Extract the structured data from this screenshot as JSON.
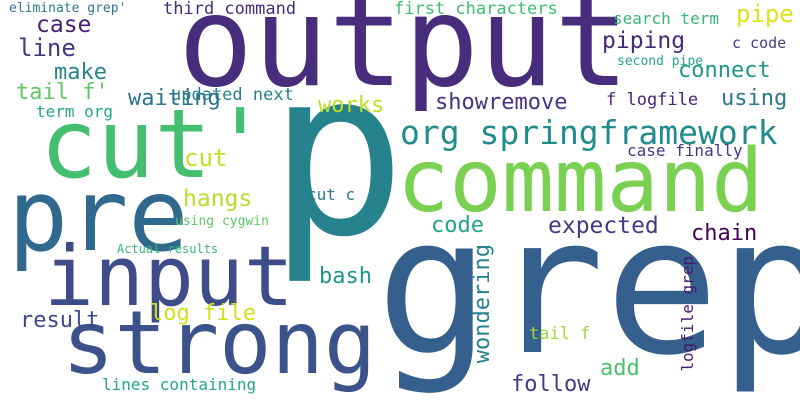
{
  "words": [
    {
      "id": "p",
      "text": "p",
      "color": "#26838e"
    },
    {
      "id": "grep",
      "text": "grep",
      "color": "#355f8d"
    },
    {
      "id": "output",
      "text": "output",
      "color": "#472d7b"
    },
    {
      "id": "command",
      "text": "command",
      "color": "#7ad151"
    },
    {
      "id": "cut_quote",
      "text": "cut'",
      "color": "#44bf70"
    },
    {
      "id": "pre",
      "text": "pre",
      "color": "#31688e"
    },
    {
      "id": "input",
      "text": "input",
      "color": "#3e4c8a"
    },
    {
      "id": "strong",
      "text": "strong",
      "color": "#3b528b"
    },
    {
      "id": "org_springframework",
      "text": "org springframework",
      "color": "#228c8d"
    },
    {
      "id": "pipe",
      "text": "pipe",
      "color": "#dde318"
    },
    {
      "id": "piping",
      "text": "piping",
      "color": "#482878"
    },
    {
      "id": "connect",
      "text": "connect",
      "color": "#1f988b"
    },
    {
      "id": "eliminate_grep",
      "text": "eliminate grep'",
      "color": "#2a788e"
    },
    {
      "id": "third_command",
      "text": "third command",
      "color": "#472c7a"
    },
    {
      "id": "first_characters",
      "text": "first characters",
      "color": "#3fbc73"
    },
    {
      "id": "search_term",
      "text": "search term",
      "color": "#35b779"
    },
    {
      "id": "c_code",
      "text": "c code",
      "color": "#443983"
    },
    {
      "id": "second_pipe",
      "text": "second pipe",
      "color": "#22a884"
    },
    {
      "id": "case_top",
      "text": "case",
      "color": "#481f70"
    },
    {
      "id": "line",
      "text": "line",
      "color": "#453781"
    },
    {
      "id": "make",
      "text": "make",
      "color": "#25858e"
    },
    {
      "id": "tail_f_quote",
      "text": "tail f'",
      "color": "#5ec962"
    },
    {
      "id": "term_org",
      "text": "term org",
      "color": "#22a884"
    },
    {
      "id": "waiting",
      "text": "waiting",
      "color": "#2c728e"
    },
    {
      "id": "updated_next",
      "text": "updated next",
      "color": "#277f8e"
    },
    {
      "id": "works",
      "text": "works",
      "color": "#bddf26"
    },
    {
      "id": "showremove",
      "text": "showremove",
      "color": "#46327e"
    },
    {
      "id": "f_logfile",
      "text": "f logfile",
      "color": "#482475"
    },
    {
      "id": "using_top",
      "text": "using",
      "color": "#2a788e"
    },
    {
      "id": "case_finally",
      "text": "case finally",
      "color": "#453882"
    },
    {
      "id": "cut",
      "text": "cut",
      "color": "#c2df23"
    },
    {
      "id": "hangs",
      "text": "hangs",
      "color": "#b5de2b"
    },
    {
      "id": "cut_c",
      "text": "cut c",
      "color": "#2a788e"
    },
    {
      "id": "using_cygwin",
      "text": "using cygwin",
      "color": "#5cc863"
    },
    {
      "id": "code",
      "text": "code",
      "color": "#21a585"
    },
    {
      "id": "expected",
      "text": "expected",
      "color": "#443a83"
    },
    {
      "id": "chain",
      "text": "chain",
      "color": "#440154"
    },
    {
      "id": "actual_results",
      "text": "Actual results",
      "color": "#35b779"
    },
    {
      "id": "bash",
      "text": "bash",
      "color": "#1f968b"
    },
    {
      "id": "wondering",
      "text": "wondering",
      "color": "#26828e"
    },
    {
      "id": "logfile_grep",
      "text": "logfile grep",
      "color": "#481c6e"
    },
    {
      "id": "result",
      "text": "result",
      "color": "#3e4989"
    },
    {
      "id": "log_file",
      "text": "log file",
      "color": "#d0e11c"
    },
    {
      "id": "tail_f",
      "text": "tail f",
      "color": "#9fda3a"
    },
    {
      "id": "add",
      "text": "add",
      "color": "#4ac16d"
    },
    {
      "id": "follow",
      "text": "follow",
      "color": "#443a83"
    },
    {
      "id": "lines_containing",
      "text": "lines containing",
      "color": "#22a785"
    }
  ]
}
